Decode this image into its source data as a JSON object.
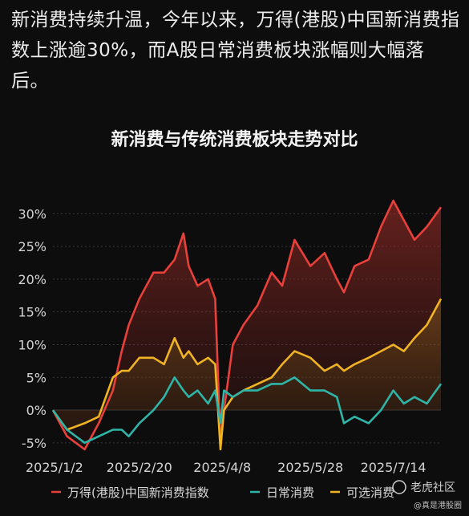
{
  "intro_text": "新消费持续升温，今年以来，万得(港股)中国新消费指数上涨逾30%，而A股日常消费板块涨幅则大幅落后。",
  "watermark": {
    "brand": "老虎社区",
    "handle": "@真是港股圈"
  },
  "colors": {
    "background": "#0d0d0d",
    "new_consumer": "#e8403a",
    "staples": "#2fb5a8",
    "discretionary": "#f0b324",
    "grid": "#3a3a3a"
  },
  "chart_data": {
    "type": "line",
    "title": "新消费与传统消费板块走势对比",
    "xlabel": "",
    "ylabel": "",
    "ylim": [
      -6,
      32
    ],
    "y_ticks": [
      -5,
      0,
      5,
      10,
      15,
      20,
      25,
      30
    ],
    "y_tick_labels": [
      "-5%",
      "0%",
      "5%",
      "10%",
      "15%",
      "20%",
      "25%",
      "30%"
    ],
    "x_ticks": [
      "2025/1/2",
      "2025/2/20",
      "2025/4/8",
      "2025/5/28",
      "2025/7/14"
    ],
    "legend_position": "bottom",
    "series": [
      {
        "name": "万得(港股)中国新消费指数",
        "color": "#e8403a",
        "points": [
          [
            "2025/1/2",
            0
          ],
          [
            "2025/1/10",
            -4
          ],
          [
            "2025/1/20",
            -6
          ],
          [
            "2025/1/28",
            -2
          ],
          [
            "2025/2/5",
            3
          ],
          [
            "2025/2/10",
            9
          ],
          [
            "2025/2/14",
            13
          ],
          [
            "2025/2/20",
            17
          ],
          [
            "2025/2/28",
            21
          ],
          [
            "2025/3/6",
            21
          ],
          [
            "2025/3/12",
            23
          ],
          [
            "2025/3/17",
            27
          ],
          [
            "2025/3/20",
            22
          ],
          [
            "2025/3/25",
            19
          ],
          [
            "2025/3/31",
            20
          ],
          [
            "2025/4/4",
            17
          ],
          [
            "2025/4/7",
            -5
          ],
          [
            "2025/4/9",
            0
          ],
          [
            "2025/4/14",
            10
          ],
          [
            "2025/4/20",
            13
          ],
          [
            "2025/4/28",
            16
          ],
          [
            "2025/5/6",
            21
          ],
          [
            "2025/5/12",
            19
          ],
          [
            "2025/5/19",
            26
          ],
          [
            "2025/5/28",
            22
          ],
          [
            "2025/6/5",
            24
          ],
          [
            "2025/6/12",
            20
          ],
          [
            "2025/6/16",
            18
          ],
          [
            "2025/6/22",
            22
          ],
          [
            "2025/6/30",
            23
          ],
          [
            "2025/7/7",
            28
          ],
          [
            "2025/7/14",
            32
          ],
          [
            "2025/7/20",
            29
          ],
          [
            "2025/7/26",
            26
          ],
          [
            "2025/8/2",
            28
          ],
          [
            "2025/8/10",
            31
          ]
        ]
      },
      {
        "name": "日常消费",
        "color": "#2fb5a8",
        "points": [
          [
            "2025/1/2",
            0
          ],
          [
            "2025/1/10",
            -3
          ],
          [
            "2025/1/20",
            -5
          ],
          [
            "2025/1/28",
            -4
          ],
          [
            "2025/2/5",
            -3
          ],
          [
            "2025/2/10",
            -3
          ],
          [
            "2025/2/14",
            -4
          ],
          [
            "2025/2/20",
            -2
          ],
          [
            "2025/2/28",
            0
          ],
          [
            "2025/3/6",
            2
          ],
          [
            "2025/3/12",
            5
          ],
          [
            "2025/3/17",
            3
          ],
          [
            "2025/3/20",
            2
          ],
          [
            "2025/3/25",
            3
          ],
          [
            "2025/3/31",
            1
          ],
          [
            "2025/4/4",
            3
          ],
          [
            "2025/4/7",
            -2
          ],
          [
            "2025/4/9",
            3
          ],
          [
            "2025/4/14",
            2
          ],
          [
            "2025/4/20",
            3
          ],
          [
            "2025/4/28",
            3
          ],
          [
            "2025/5/6",
            4
          ],
          [
            "2025/5/12",
            4
          ],
          [
            "2025/5/19",
            5
          ],
          [
            "2025/5/28",
            3
          ],
          [
            "2025/6/5",
            3
          ],
          [
            "2025/6/12",
            2
          ],
          [
            "2025/6/16",
            -2
          ],
          [
            "2025/6/22",
            -1
          ],
          [
            "2025/6/30",
            -2
          ],
          [
            "2025/7/7",
            0
          ],
          [
            "2025/7/14",
            3
          ],
          [
            "2025/7/20",
            1
          ],
          [
            "2025/7/26",
            2
          ],
          [
            "2025/8/2",
            1
          ],
          [
            "2025/8/10",
            4
          ]
        ]
      },
      {
        "name": "可选消费",
        "color": "#f0b324",
        "points": [
          [
            "2025/1/2",
            0
          ],
          [
            "2025/1/10",
            -3
          ],
          [
            "2025/1/20",
            -2
          ],
          [
            "2025/1/28",
            -1
          ],
          [
            "2025/2/5",
            5
          ],
          [
            "2025/2/10",
            6
          ],
          [
            "2025/2/14",
            6
          ],
          [
            "2025/2/20",
            8
          ],
          [
            "2025/2/28",
            8
          ],
          [
            "2025/3/6",
            7
          ],
          [
            "2025/3/12",
            11
          ],
          [
            "2025/3/17",
            8
          ],
          [
            "2025/3/20",
            9
          ],
          [
            "2025/3/25",
            7
          ],
          [
            "2025/3/31",
            8
          ],
          [
            "2025/4/4",
            7
          ],
          [
            "2025/4/7",
            -6
          ],
          [
            "2025/4/9",
            0
          ],
          [
            "2025/4/14",
            2
          ],
          [
            "2025/4/20",
            3
          ],
          [
            "2025/4/28",
            4
          ],
          [
            "2025/5/6",
            5
          ],
          [
            "2025/5/12",
            7
          ],
          [
            "2025/5/19",
            9
          ],
          [
            "2025/5/28",
            8
          ],
          [
            "2025/6/5",
            6
          ],
          [
            "2025/6/12",
            7
          ],
          [
            "2025/6/16",
            6
          ],
          [
            "2025/6/22",
            7
          ],
          [
            "2025/6/30",
            8
          ],
          [
            "2025/7/7",
            9
          ],
          [
            "2025/7/14",
            10
          ],
          [
            "2025/7/20",
            9
          ],
          [
            "2025/7/26",
            11
          ],
          [
            "2025/8/2",
            13
          ],
          [
            "2025/8/10",
            17
          ]
        ]
      }
    ]
  }
}
